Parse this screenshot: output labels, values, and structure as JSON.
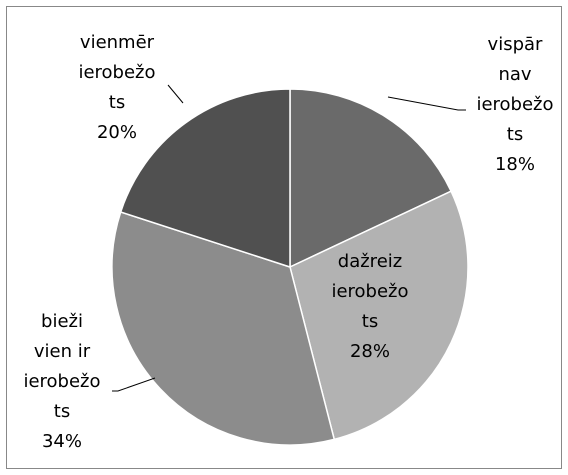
{
  "chart_data": {
    "type": "pie",
    "categories": [
      "vispār nav ierobežots",
      "dažreiz ierobežots",
      "bieži vien ir ierobežots",
      "vienmēr ierobežots"
    ],
    "values": [
      18,
      28,
      34,
      20
    ],
    "value_labels": [
      "18%",
      "28%",
      "34%",
      "20%"
    ],
    "colors": [
      "#6a6a6a",
      "#b2b2b2",
      "#8c8c8c",
      "#505050"
    ]
  }
}
